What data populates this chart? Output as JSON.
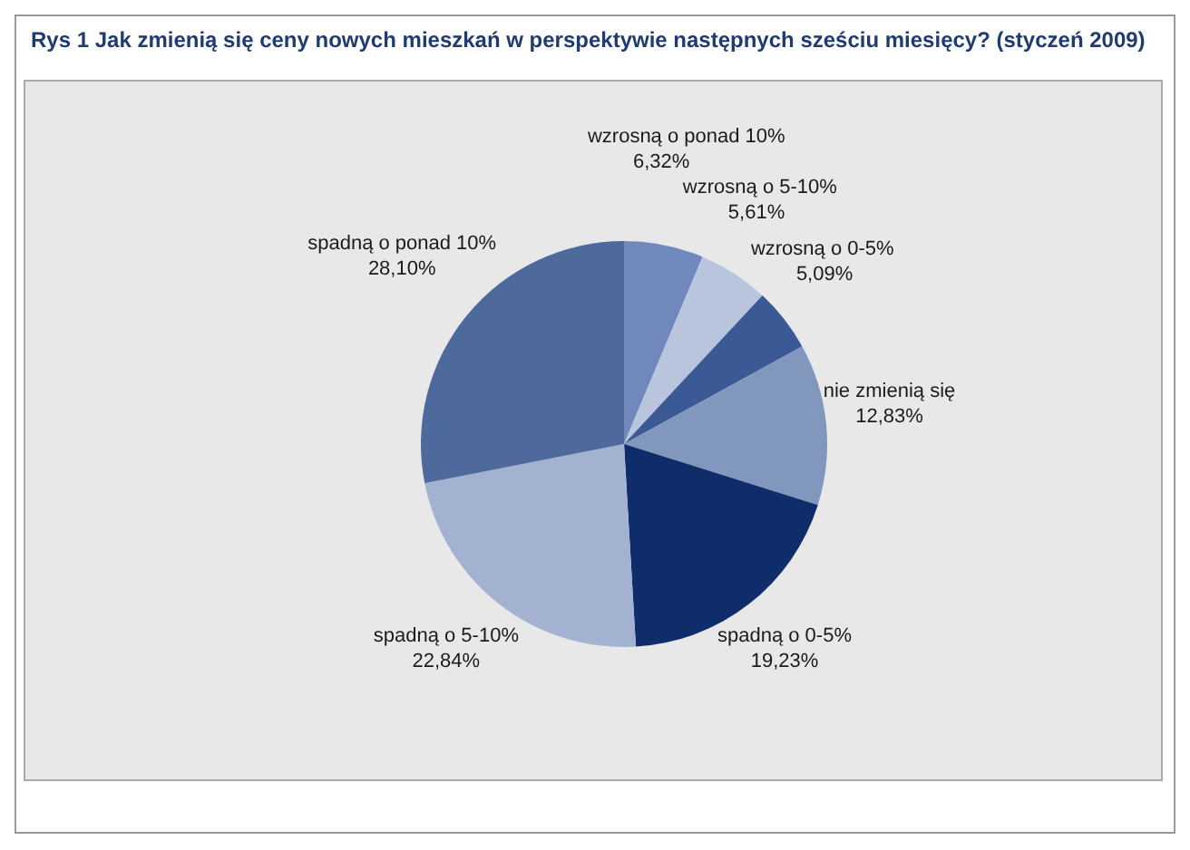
{
  "chart_data": {
    "type": "pie",
    "title": "Rys 1 Jak zmienią się ceny nowych mieszkań w perspektywie następnych sześciu miesięcy? (styczeń 2009)",
    "categories": [
      "wzrosną o ponad 10%",
      "wzrosną o 5-10%",
      "wzrosną o 0-5%",
      "nie zmienią się",
      "spadną o 0-5%",
      "spadną o 5-10%",
      "spadną o ponad 10%"
    ],
    "values": [
      6.32,
      5.61,
      5.09,
      12.83,
      19.23,
      22.84,
      28.1
    ],
    "value_labels": [
      "6,32%",
      "5,61%",
      "5,09%",
      "12,83%",
      "19,23%",
      "22,84%",
      "28,10%"
    ],
    "colors": [
      "#7088bb",
      "#b9c5dd",
      "#3b5995",
      "#8297bd",
      "#0f2d6b",
      "#a2b2d0",
      "#4e6a9d"
    ]
  }
}
